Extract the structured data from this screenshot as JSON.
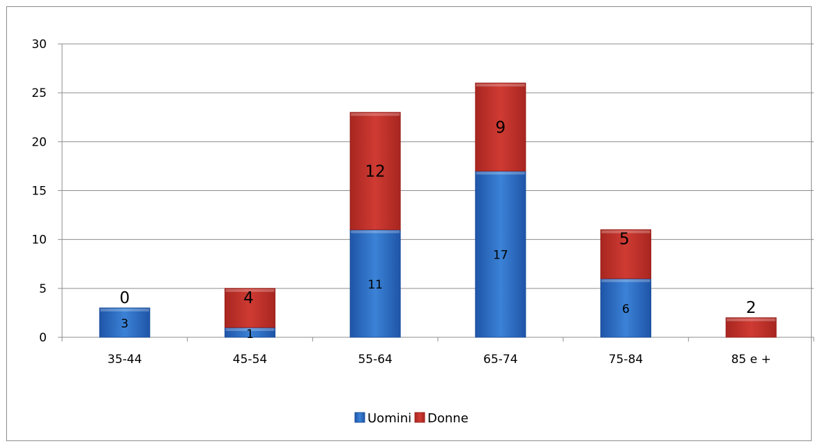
{
  "chart_data": {
    "type": "bar",
    "stacked": true,
    "categories": [
      "35-44",
      "45-54",
      "55-64",
      "65-74",
      "75-84",
      "85 e +"
    ],
    "series": [
      {
        "name": "Uomini",
        "color": "#2f6fc4",
        "values": [
          3,
          1,
          11,
          17,
          6,
          0
        ],
        "labels": [
          "3",
          "1",
          "11",
          "17",
          "6",
          ""
        ]
      },
      {
        "name": "Donne",
        "color": "#c0302a",
        "values": [
          0,
          4,
          12,
          9,
          5,
          2
        ],
        "labels": [
          "0",
          "4",
          "12",
          "9",
          "5",
          "2"
        ]
      }
    ],
    "ylim": [
      0,
      30
    ],
    "yticks": [
      "0",
      "5",
      "10",
      "15",
      "20",
      "25",
      "30"
    ],
    "title": "",
    "xlabel": "",
    "ylabel": "",
    "grid": true,
    "legend": "bottom"
  }
}
